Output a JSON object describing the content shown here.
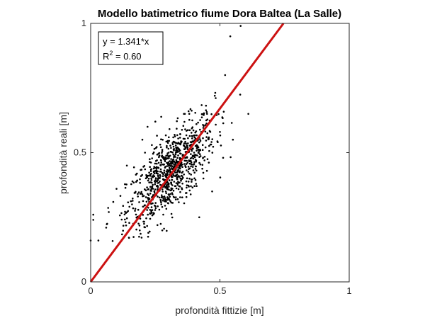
{
  "chart_data": {
    "type": "scatter",
    "title": "Modello batimetrico fiume Dora Baltea (La Salle)",
    "xlabel": "profondità fittizie [m]",
    "ylabel": "profondità reali [m]",
    "xlim": [
      0,
      1
    ],
    "ylim": [
      0,
      1
    ],
    "xticks": [
      "0",
      "0.5",
      "1"
    ],
    "yticks": [
      "0",
      "0.5",
      "1"
    ],
    "grid": false,
    "annotation": {
      "equation": "y = 1.341*x",
      "r2_label": "R",
      "r2_exponent": "2",
      "r2_value": " = 0.60",
      "placement": "top-left"
    },
    "scatter_color": "#000000",
    "fit_line": {
      "slope": 1.341,
      "color": "#cc1111"
    },
    "series": [
      {
        "type": "scatter",
        "point_count": 900,
        "summary_points": [
          [
            0.0,
            0.16
          ],
          [
            0.01,
            0.26
          ],
          [
            0.01,
            0.24
          ],
          [
            0.03,
            0.16
          ],
          [
            0.06,
            0.21
          ],
          [
            0.07,
            0.27
          ],
          [
            0.1,
            0.36
          ],
          [
            0.14,
            0.45
          ],
          [
            0.16,
            0.3
          ],
          [
            0.2,
            0.55
          ],
          [
            0.22,
            0.6
          ],
          [
            0.25,
            0.62
          ],
          [
            0.3,
            0.4
          ],
          [
            0.35,
            0.45
          ],
          [
            0.4,
            0.5
          ],
          [
            0.42,
            0.25
          ],
          [
            0.45,
            0.65
          ],
          [
            0.47,
            0.35
          ],
          [
            0.48,
            0.72
          ],
          [
            0.5,
            0.58
          ],
          [
            0.52,
            0.8
          ],
          [
            0.55,
            0.55
          ],
          [
            0.58,
            0.99
          ],
          [
            0.61,
            0.65
          ],
          [
            0.54,
            0.95
          ]
        ]
      }
    ]
  }
}
